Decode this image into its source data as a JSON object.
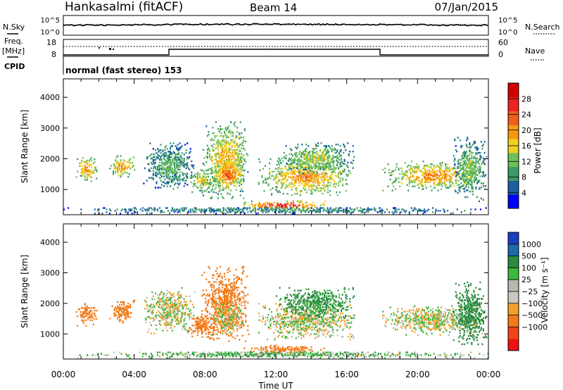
{
  "header": {
    "station": "Hankasalmi (fitACF)",
    "beam": "Beam 14",
    "date": "07/Jan/2015"
  },
  "noise_panel": {
    "left_label": "N.Sky",
    "right_label": "N.Search",
    "left_ticks": [
      "10^5",
      "10^0"
    ],
    "right_ticks": [
      "10^5",
      "10^0"
    ]
  },
  "freq_panel": {
    "left_label_1": "Freq.",
    "left_label_2": "[MHz]",
    "right_label": "Nave",
    "left_ticks": [
      "18",
      "8"
    ],
    "right_ticks": [
      "60",
      "0"
    ]
  },
  "cpid_panel": {
    "label": "CPID",
    "text": "normal (fast stereo) 153"
  },
  "colors": {
    "power": [
      "#0000ff",
      "#1a5fa0",
      "#3c9a6a",
      "#6ec05a",
      "#f0d020",
      "#f59a10",
      "#f06018",
      "#ee2222",
      "#d20000"
    ],
    "velocity": [
      "#ee1111",
      "#f04418",
      "#f27a18",
      "#f5a028",
      "#c8c8c0",
      "#b8b8b0",
      "#3cb83a",
      "#2a8a40",
      "#1e6aa8",
      "#1a3ec0"
    ]
  },
  "chart_data": [
    {
      "type": "heatmap",
      "title": "Power",
      "ylabel": "Slant Range [km]",
      "xlabel": "Time UT",
      "x_ticks": [
        "00:00",
        "04:00",
        "08:00",
        "12:00",
        "16:00",
        "20:00",
        "00:00"
      ],
      "y_ticks": [
        "1000",
        "2000",
        "3000",
        "4000"
      ],
      "ylim": [
        180,
        4600
      ],
      "xlim_hours": [
        0,
        24
      ],
      "colorbar": {
        "label": "Power [dB]",
        "ticks": [
          "4",
          "8",
          "12",
          "16",
          "20",
          "24",
          "28"
        ],
        "range": [
          0,
          32
        ]
      },
      "echo_regions": [
        {
          "t_start": 0.7,
          "t_end": 1.9,
          "r_low": 1250,
          "r_high": 2050,
          "peak_power": 22
        },
        {
          "t_start": 2.6,
          "t_end": 4.0,
          "r_low": 1350,
          "r_high": 2100,
          "peak_power": 22
        },
        {
          "t_start": 4.5,
          "t_end": 7.4,
          "r_low": 1000,
          "r_high": 2500,
          "peak_power": 12
        },
        {
          "t_start": 7.0,
          "t_end": 8.6,
          "r_low": 900,
          "r_high": 1650,
          "peak_power": 18
        },
        {
          "t_start": 7.8,
          "t_end": 10.5,
          "r_low": 700,
          "r_high": 3200,
          "peak_power": 20
        },
        {
          "t_start": 8.4,
          "t_end": 10.2,
          "r_low": 950,
          "r_high": 2000,
          "peak_power": 26
        },
        {
          "t_start": 10.0,
          "t_end": 14.8,
          "r_low": 330,
          "r_high": 620,
          "peak_power": 30
        },
        {
          "t_start": 11.0,
          "t_end": 16.4,
          "r_low": 800,
          "r_high": 2000,
          "peak_power": 22
        },
        {
          "t_start": 12.0,
          "t_end": 16.4,
          "r_low": 1500,
          "r_high": 2500,
          "peak_power": 16
        },
        {
          "t_start": 18.0,
          "t_end": 23.8,
          "r_low": 950,
          "r_high": 1900,
          "peak_power": 22
        },
        {
          "t_start": 22.0,
          "t_end": 23.9,
          "r_low": 600,
          "r_high": 2700,
          "peak_power": 14
        },
        {
          "t_start": 0.0,
          "t_end": 24.0,
          "r_low": 200,
          "r_high": 420,
          "peak_power": 10
        }
      ]
    },
    {
      "type": "heatmap",
      "title": "Velocity",
      "ylabel": "Slant Range [km]",
      "xlabel": "Time UT",
      "x_ticks": [
        "00:00",
        "04:00",
        "08:00",
        "12:00",
        "16:00",
        "20:00",
        "00:00"
      ],
      "y_ticks": [
        "1000",
        "2000",
        "3000",
        "4000"
      ],
      "ylim": [
        180,
        4600
      ],
      "xlim_hours": [
        0,
        24
      ],
      "colorbar": {
        "label": "Velocity [m s⁻¹]",
        "ticks": [
          "1000",
          "500",
          "100",
          "25",
          "−25",
          "−100",
          "−500",
          "−1000"
        ]
      },
      "echo_regions": [
        {
          "t_start": 0.7,
          "t_end": 1.9,
          "r_low": 1250,
          "r_high": 2050,
          "velocity": -300
        },
        {
          "t_start": 2.6,
          "t_end": 4.0,
          "r_low": 1350,
          "r_high": 2100,
          "velocity": -300
        },
        {
          "t_start": 4.5,
          "t_end": 7.4,
          "r_low": 1000,
          "r_high": 2500,
          "velocity": 0
        },
        {
          "t_start": 7.0,
          "t_end": 8.6,
          "r_low": 900,
          "r_high": 1650,
          "velocity": -300
        },
        {
          "t_start": 7.8,
          "t_end": 10.5,
          "r_low": 700,
          "r_high": 3200,
          "velocity": -300
        },
        {
          "t_start": 8.4,
          "t_end": 10.2,
          "r_low": 950,
          "r_high": 2000,
          "velocity": 0
        },
        {
          "t_start": 10.0,
          "t_end": 14.8,
          "r_low": 330,
          "r_high": 620,
          "velocity": -300
        },
        {
          "t_start": 11.0,
          "t_end": 16.4,
          "r_low": 800,
          "r_high": 2000,
          "velocity": 0
        },
        {
          "t_start": 12.0,
          "t_end": 16.4,
          "r_low": 1500,
          "r_high": 2500,
          "velocity": 150
        },
        {
          "t_start": 18.0,
          "t_end": 23.8,
          "r_low": 950,
          "r_high": 1900,
          "velocity": 0
        },
        {
          "t_start": 22.0,
          "t_end": 23.9,
          "r_low": 600,
          "r_high": 2700,
          "velocity": 200
        },
        {
          "t_start": 0.0,
          "t_end": 24.0,
          "r_low": 200,
          "r_high": 420,
          "velocity": 60
        }
      ]
    }
  ]
}
